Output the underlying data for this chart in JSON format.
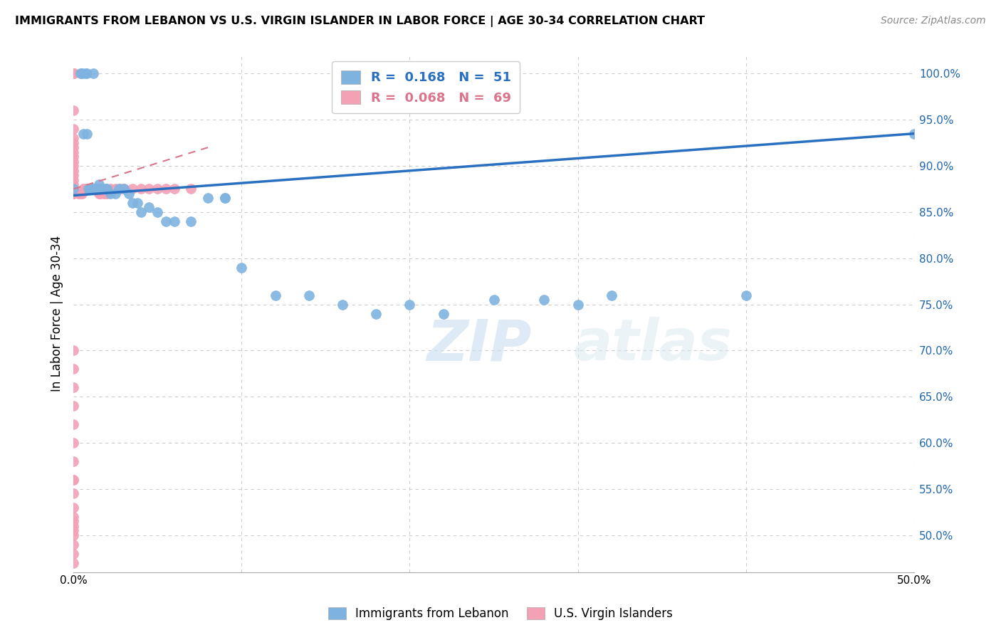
{
  "title": "IMMIGRANTS FROM LEBANON VS U.S. VIRGIN ISLANDER IN LABOR FORCE | AGE 30-34 CORRELATION CHART",
  "source": "Source: ZipAtlas.com",
  "ylabel": "In Labor Force | Age 30-34",
  "xlim": [
    0.0,
    0.5
  ],
  "ylim": [
    0.46,
    1.02
  ],
  "xticks": [
    0.0,
    0.1,
    0.2,
    0.3,
    0.4,
    0.5
  ],
  "xticklabels": [
    "0.0%",
    "",
    "",
    "",
    "",
    "50.0%"
  ],
  "yticks": [
    0.5,
    0.55,
    0.6,
    0.65,
    0.7,
    0.75,
    0.8,
    0.85,
    0.9,
    0.95,
    1.0
  ],
  "legend_r_blue": "0.168",
  "legend_n_blue": "51",
  "legend_r_pink": "0.068",
  "legend_n_pink": "69",
  "blue_color": "#7eb3e0",
  "pink_color": "#f4a0b5",
  "trend_blue_color": "#2970c0",
  "trend_pink_color": "#d9748a",
  "watermark_zip": "ZIP",
  "watermark_atlas": "atlas",
  "blue_scatter_x": [
    0.0,
    0.004,
    0.005,
    0.006,
    0.007,
    0.008,
    0.009,
    0.01,
    0.011,
    0.012,
    0.013,
    0.014,
    0.015,
    0.016,
    0.017,
    0.018,
    0.019,
    0.02,
    0.022,
    0.025,
    0.027,
    0.03,
    0.033,
    0.035,
    0.038,
    0.04,
    0.045,
    0.05,
    0.055,
    0.06,
    0.07,
    0.08,
    0.09,
    0.1,
    0.12,
    0.14,
    0.16,
    0.18,
    0.2,
    0.22,
    0.25,
    0.28,
    0.3,
    0.32,
    0.4,
    0.5,
    0.005,
    0.008,
    0.012,
    0.018,
    0.09
  ],
  "blue_scatter_y": [
    0.875,
    1.0,
    1.0,
    0.935,
    1.0,
    0.935,
    0.875,
    0.875,
    0.875,
    0.875,
    0.875,
    0.875,
    0.88,
    0.875,
    0.875,
    0.875,
    0.875,
    0.875,
    0.87,
    0.87,
    0.875,
    0.875,
    0.87,
    0.86,
    0.86,
    0.85,
    0.855,
    0.85,
    0.84,
    0.84,
    0.84,
    0.865,
    0.865,
    0.79,
    0.76,
    0.76,
    0.75,
    0.74,
    0.75,
    0.74,
    0.755,
    0.755,
    0.75,
    0.76,
    0.76,
    0.935,
    1.0,
    1.0,
    1.0,
    0.875,
    0.865
  ],
  "pink_scatter_x": [
    0.0,
    0.0,
    0.0,
    0.0,
    0.0,
    0.0,
    0.0,
    0.0,
    0.0,
    0.0,
    0.0,
    0.0,
    0.0,
    0.0,
    0.0,
    0.0,
    0.0,
    0.0,
    0.0,
    0.0,
    0.0,
    0.0,
    0.0,
    0.0,
    0.0,
    0.003,
    0.004,
    0.005,
    0.006,
    0.007,
    0.008,
    0.009,
    0.01,
    0.012,
    0.013,
    0.015,
    0.016,
    0.018,
    0.02,
    0.022,
    0.025,
    0.028,
    0.03,
    0.035,
    0.04,
    0.045,
    0.05,
    0.055,
    0.06,
    0.07,
    0.0,
    0.0,
    0.0,
    0.0,
    0.0,
    0.0,
    0.0,
    0.0,
    0.0,
    0.0,
    0.0,
    0.0,
    0.0,
    0.0,
    0.0,
    0.0,
    0.0,
    0.0,
    0.0
  ],
  "pink_scatter_y": [
    1.0,
    1.0,
    1.0,
    1.0,
    1.0,
    1.0,
    1.0,
    1.0,
    1.0,
    0.96,
    0.94,
    0.93,
    0.925,
    0.92,
    0.915,
    0.91,
    0.905,
    0.9,
    0.895,
    0.89,
    0.885,
    0.88,
    0.875,
    0.87,
    0.87,
    0.87,
    0.87,
    0.87,
    0.875,
    0.875,
    0.875,
    0.875,
    0.875,
    0.875,
    0.875,
    0.87,
    0.87,
    0.87,
    0.87,
    0.875,
    0.875,
    0.875,
    0.875,
    0.875,
    0.875,
    0.875,
    0.875,
    0.875,
    0.875,
    0.875,
    0.7,
    0.68,
    0.66,
    0.64,
    0.62,
    0.6,
    0.58,
    0.56,
    0.545,
    0.53,
    0.52,
    0.515,
    0.51,
    0.505,
    0.5,
    0.56,
    0.49,
    0.48,
    0.47
  ],
  "blue_trend_x0": 0.0,
  "blue_trend_x1": 0.5,
  "blue_trend_y0": 0.868,
  "blue_trend_y1": 0.935,
  "pink_trend_x0": 0.0,
  "pink_trend_x1": 0.08,
  "pink_trend_y0": 0.875,
  "pink_trend_y1": 0.92
}
